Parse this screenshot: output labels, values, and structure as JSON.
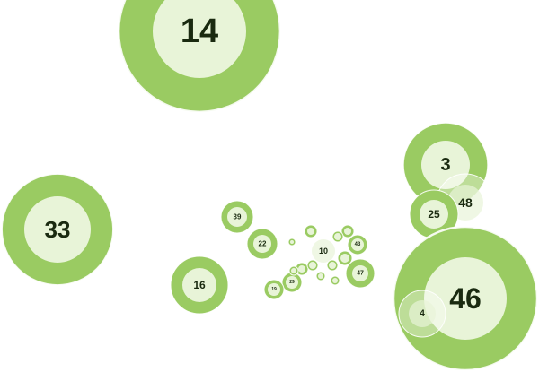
{
  "colors": {
    "outer": "#9acb62",
    "inner": "#e8f4d8",
    "ring": "#ffffff",
    "text": "#1a2a10",
    "overlay": "#ffffff"
  },
  "bubbles": [
    {
      "label": "14"
    },
    {
      "label": "33"
    },
    {
      "label": "3"
    },
    {
      "label": "48"
    },
    {
      "label": "25"
    },
    {
      "label": "46"
    },
    {
      "label": "4"
    },
    {
      "label": "39"
    },
    {
      "label": "22"
    },
    {
      "label": "16"
    },
    {
      "label": "10"
    },
    {
      "label": "43"
    },
    {
      "label": "47"
    },
    {
      "label": "29"
    },
    {
      "label": "19"
    },
    {
      "label": ""
    },
    {
      "label": ""
    },
    {
      "label": ""
    },
    {
      "label": ""
    },
    {
      "label": ""
    },
    {
      "label": ""
    },
    {
      "label": ""
    },
    {
      "label": ""
    },
    {
      "label": ""
    },
    {
      "label": ""
    },
    {
      "label": ""
    }
  ]
}
